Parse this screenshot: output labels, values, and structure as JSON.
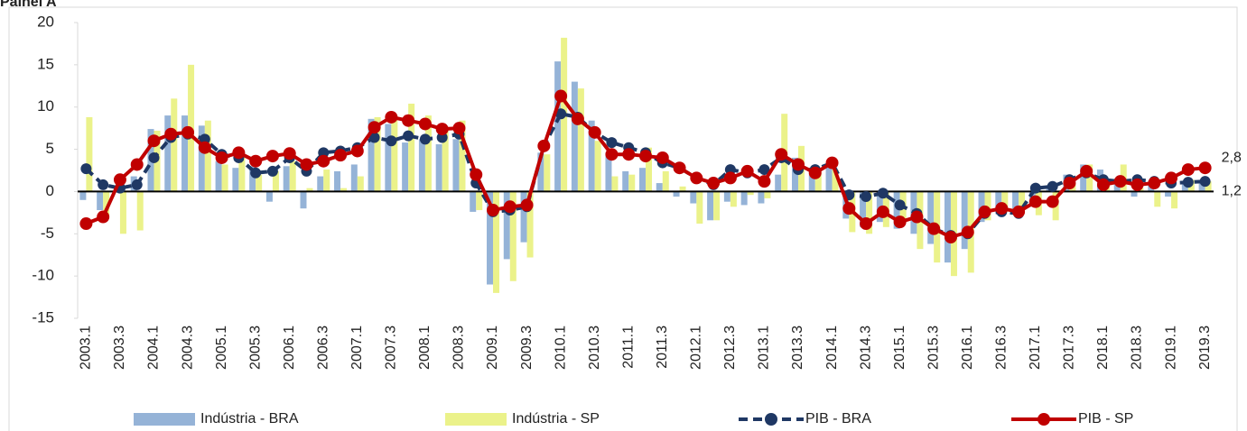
{
  "chart_data": {
    "type": "bar-line",
    "title": "Painel A",
    "categories": [
      "2003.1",
      null,
      "2003.3",
      null,
      "2004.1",
      null,
      "2004.3",
      null,
      "2005.1",
      null,
      "2005.3",
      null,
      "2006.1",
      null,
      "2006.3",
      null,
      "2007.1",
      null,
      "2007.3",
      null,
      "2008.1",
      null,
      "2008.3",
      null,
      "2009.1",
      null,
      "2009.3",
      null,
      "2010.1",
      null,
      "2010.3",
      null,
      "2011.1",
      null,
      "2011.3",
      null,
      "2012.1",
      null,
      "2012.3",
      null,
      "2013.1",
      null,
      "2013.3",
      null,
      "2014.1",
      null,
      "2014.3",
      null,
      "2015.1",
      null,
      "2015.3",
      null,
      "2016.1",
      null,
      "2016.3",
      null,
      "2017.1",
      null,
      "2017.3",
      null,
      "2018.1",
      null,
      "2018.3",
      null,
      "2019.1",
      null,
      "2019.3"
    ],
    "ylim": [
      -15,
      20
    ],
    "yticks": [
      -15,
      -10,
      -5,
      0,
      5,
      10,
      15,
      20
    ],
    "series": [
      {
        "name": "Indústria - BRA",
        "kind": "bar",
        "color": "#95b3d7",
        "values": [
          -1.0,
          -2.2,
          0.6,
          1.8,
          7.4,
          9.0,
          9.0,
          7.8,
          3.6,
          2.8,
          3.0,
          -1.2,
          3.0,
          -2.0,
          1.8,
          2.4,
          3.2,
          8.6,
          8.0,
          5.8,
          6.2,
          5.6,
          6.2,
          -2.4,
          -11.0,
          -8.0,
          -6.0,
          4.6,
          15.4,
          13.0,
          8.4,
          4.6,
          2.4,
          2.8,
          1.0,
          -0.6,
          -1.4,
          -3.4,
          -1.2,
          -1.6,
          -1.4,
          2.0,
          4.0,
          2.2,
          3.0,
          -3.2,
          -4.2,
          -3.6,
          -4.4,
          -5.0,
          -6.2,
          -8.4,
          -6.8,
          -3.6,
          -2.0,
          -2.6,
          -1.8,
          0.6,
          2.0,
          3.2,
          2.6,
          1.2,
          -0.6,
          0.8,
          -0.6,
          1.0,
          1.2
        ]
      },
      {
        "name": "Indústria - SP",
        "kind": "bar",
        "color": "#ebf28a",
        "values": [
          8.8,
          -3.0,
          -5.0,
          -4.6,
          7.2,
          11.0,
          15.0,
          8.4,
          3.2,
          4.2,
          2.0,
          2.4,
          3.6,
          0.4,
          2.6,
          0.4,
          1.8,
          8.8,
          9.0,
          10.4,
          9.0,
          7.6,
          8.4,
          -2.2,
          -12.0,
          -10.6,
          -7.8,
          4.4,
          18.2,
          12.2,
          6.0,
          1.8,
          2.0,
          5.2,
          2.4,
          0.6,
          -3.8,
          -3.4,
          -1.8,
          -0.4,
          -0.8,
          9.2,
          5.4,
          2.6,
          2.6,
          -4.8,
          -5.0,
          -4.2,
          -3.4,
          -6.8,
          -8.4,
          -10.0,
          -9.6,
          -3.4,
          -2.4,
          -2.4,
          -2.8,
          -3.4,
          1.0,
          3.2,
          1.0,
          3.2,
          0.4,
          -1.8,
          -2.0,
          1.4,
          1.2
        ]
      },
      {
        "name": "PIB - BRA",
        "kind": "line",
        "dashed": true,
        "color": "#1f3864",
        "values": [
          2.7,
          0.8,
          0.4,
          0.8,
          4.0,
          6.4,
          6.8,
          6.2,
          4.4,
          4.0,
          2.2,
          2.4,
          4.0,
          2.4,
          4.6,
          4.8,
          5.2,
          6.4,
          6.0,
          6.6,
          6.2,
          6.4,
          6.8,
          1.0,
          -2.4,
          -2.2,
          -1.8,
          5.4,
          9.2,
          8.8,
          7.0,
          5.8,
          5.2,
          4.6,
          3.4,
          2.8,
          1.6,
          0.8,
          2.6,
          2.2,
          2.6,
          4.0,
          2.6,
          2.6,
          3.4,
          -0.4,
          -0.6,
          -0.2,
          -1.6,
          -2.6,
          -4.4,
          -5.2,
          -5.0,
          -2.6,
          -2.4,
          -2.6,
          0.4,
          0.6,
          1.4,
          2.2,
          1.4,
          1.2,
          1.4,
          1.2,
          1.0,
          1.1,
          1.2
        ],
        "value_labels": [
          null,
          null,
          null,
          null,
          null,
          null,
          null,
          null,
          null,
          null,
          null,
          null,
          null,
          null,
          null,
          null,
          null,
          null,
          null,
          null,
          null,
          null,
          null,
          null,
          null,
          null,
          null,
          null,
          null,
          null,
          null,
          null,
          null,
          null,
          null,
          null,
          null,
          null,
          null,
          null,
          null,
          null,
          null,
          null,
          null,
          null,
          null,
          null,
          null,
          null,
          null,
          null,
          null,
          null,
          null,
          null,
          null,
          null,
          null,
          null,
          null,
          null,
          null,
          null,
          null,
          null,
          "1,2"
        ]
      },
      {
        "name": "PIB - SP",
        "kind": "line",
        "dashed": false,
        "color": "#c00000",
        "values": [
          -3.8,
          -3.0,
          1.4,
          3.2,
          6.0,
          6.8,
          7.0,
          5.2,
          4.0,
          4.6,
          3.6,
          4.2,
          4.5,
          3.2,
          3.6,
          4.3,
          4.8,
          7.6,
          8.8,
          8.4,
          8.0,
          7.4,
          7.5,
          2.0,
          -2.2,
          -1.8,
          -1.6,
          5.4,
          11.3,
          8.6,
          7.0,
          4.4,
          4.4,
          4.2,
          4.0,
          2.8,
          1.6,
          1.0,
          1.6,
          2.4,
          1.2,
          4.4,
          3.2,
          2.2,
          3.4,
          -2.0,
          -3.8,
          -2.4,
          -3.6,
          -3.0,
          -4.4,
          -5.4,
          -4.8,
          -2.4,
          -2.0,
          -2.4,
          -1.2,
          -1.2,
          1.0,
          2.4,
          0.8,
          1.2,
          0.8,
          1.0,
          1.6,
          2.6,
          2.8
        ],
        "value_labels": [
          null,
          null,
          null,
          null,
          null,
          null,
          null,
          null,
          null,
          null,
          null,
          null,
          null,
          null,
          null,
          null,
          null,
          null,
          null,
          null,
          null,
          null,
          null,
          null,
          null,
          null,
          null,
          null,
          null,
          null,
          null,
          null,
          null,
          null,
          null,
          null,
          null,
          null,
          null,
          null,
          null,
          null,
          null,
          null,
          null,
          null,
          null,
          null,
          null,
          null,
          null,
          null,
          null,
          null,
          null,
          null,
          null,
          null,
          null,
          null,
          null,
          null,
          null,
          null,
          null,
          null,
          "2,8"
        ]
      }
    ]
  }
}
